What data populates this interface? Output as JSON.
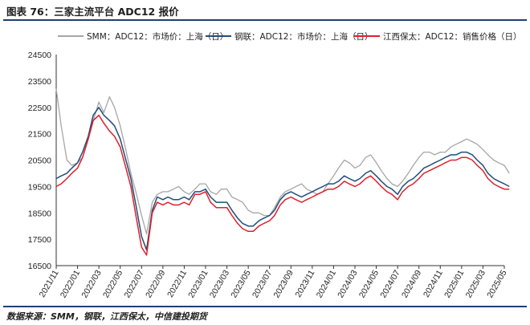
{
  "figure": {
    "title": "图表 76：三家主流平台 ADC12 报价",
    "source": "数据来源：SMM，钢联，江西保太，中信建投期货"
  },
  "colors": {
    "smm": "#a6a6a6",
    "ganglian": "#1f4e79",
    "baotai": "#e0202b",
    "rule": "#1f3f73"
  },
  "chart_data": {
    "type": "line",
    "title": "",
    "xlabel": "",
    "ylabel": "",
    "ylim": [
      16500,
      24500
    ],
    "yticks": [
      16500,
      17500,
      18500,
      19500,
      20500,
      21500,
      22500,
      23500,
      24500
    ],
    "xlim": [
      "2021-11",
      "2025-05"
    ],
    "xticks": [
      "2021/11",
      "2022/01",
      "2022/03",
      "2022/05",
      "2022/07",
      "2022/09",
      "2022/11",
      "2023/01",
      "2023/03",
      "2023/05",
      "2023/07",
      "2023/09",
      "2023/11",
      "2024/01",
      "2024/03",
      "2024/05",
      "2024/07",
      "2024/09",
      "2024/11",
      "2025/01",
      "2025/03",
      "2025/05"
    ],
    "grid": false,
    "legend_position": "top",
    "x": [
      "2021-11-01",
      "2021-11-15",
      "2021-12-01",
      "2021-12-15",
      "2022-01-01",
      "2022-01-15",
      "2022-02-01",
      "2022-02-15",
      "2022-03-01",
      "2022-03-15",
      "2022-04-01",
      "2022-04-15",
      "2022-05-01",
      "2022-05-15",
      "2022-06-01",
      "2022-06-15",
      "2022-07-01",
      "2022-07-15",
      "2022-08-01",
      "2022-08-15",
      "2022-09-01",
      "2022-09-15",
      "2022-10-01",
      "2022-10-15",
      "2022-11-01",
      "2022-11-15",
      "2022-12-01",
      "2022-12-15",
      "2023-01-01",
      "2023-01-15",
      "2023-02-01",
      "2023-02-15",
      "2023-03-01",
      "2023-03-15",
      "2023-04-01",
      "2023-04-15",
      "2023-05-01",
      "2023-05-15",
      "2023-06-01",
      "2023-06-15",
      "2023-07-01",
      "2023-07-15",
      "2023-08-01",
      "2023-08-15",
      "2023-09-01",
      "2023-09-15",
      "2023-10-01",
      "2023-10-15",
      "2023-11-01",
      "2023-11-15",
      "2023-12-01",
      "2023-12-15",
      "2024-01-01",
      "2024-01-15",
      "2024-02-01",
      "2024-02-15",
      "2024-03-01",
      "2024-03-15",
      "2024-04-01",
      "2024-04-15",
      "2024-05-01",
      "2024-05-15",
      "2024-06-01",
      "2024-06-15",
      "2024-07-01",
      "2024-07-15",
      "2024-08-01",
      "2024-08-15",
      "2024-09-01",
      "2024-09-15",
      "2024-10-01",
      "2024-10-15",
      "2024-11-01",
      "2024-11-15",
      "2024-12-01",
      "2024-12-15",
      "2025-01-01",
      "2025-01-15",
      "2025-02-01",
      "2025-02-15",
      "2025-03-01",
      "2025-03-15",
      "2025-04-01",
      "2025-04-15",
      "2025-05-01",
      "2025-05-15"
    ],
    "series": [
      {
        "name": "SMM：ADC12：市场价：上海（日）",
        "color": "#a6a6a6",
        "values": [
          23200,
          21800,
          20500,
          20300,
          20400,
          20600,
          21300,
          22000,
          22700,
          22300,
          22900,
          22500,
          21800,
          21000,
          20000,
          19300,
          18400,
          17700,
          18900,
          19200,
          19300,
          19300,
          19400,
          19500,
          19300,
          19200,
          19400,
          19600,
          19600,
          19300,
          19200,
          19400,
          19400,
          19100,
          19000,
          18900,
          18600,
          18500,
          18500,
          18400,
          18400,
          18700,
          19100,
          19300,
          19400,
          19500,
          19600,
          19400,
          19300,
          19200,
          19300,
          19600,
          19900,
          20200,
          20500,
          20400,
          20200,
          20300,
          20600,
          20700,
          20400,
          20100,
          19800,
          19600,
          19500,
          19700,
          20000,
          20300,
          20600,
          20800,
          20800,
          20700,
          20800,
          20800,
          21000,
          21100,
          21200,
          21300,
          21200,
          21100,
          20900,
          20700,
          20500,
          20400,
          20300,
          20000
        ]
      },
      {
        "name": "钢联：ADC12：市场价：上海（日）",
        "color": "#1f4e79",
        "values": [
          19800,
          19900,
          20000,
          20200,
          20400,
          20800,
          21400,
          22200,
          22500,
          22200,
          22000,
          21800,
          21300,
          20600,
          19800,
          18800,
          17600,
          17100,
          18600,
          19100,
          19000,
          19100,
          19000,
          19000,
          19100,
          19000,
          19300,
          19300,
          19400,
          19100,
          18900,
          18900,
          18900,
          18600,
          18300,
          18100,
          18000,
          18000,
          18200,
          18300,
          18400,
          18600,
          19000,
          19200,
          19300,
          19200,
          19100,
          19200,
          19300,
          19400,
          19500,
          19600,
          19600,
          19700,
          19900,
          19800,
          19700,
          19800,
          20000,
          20100,
          19900,
          19700,
          19500,
          19400,
          19200,
          19500,
          19700,
          19800,
          20000,
          20200,
          20300,
          20400,
          20500,
          20600,
          20700,
          20700,
          20800,
          20800,
          20700,
          20500,
          20300,
          20000,
          19800,
          19700,
          19600,
          19500
        ]
      },
      {
        "name": "江西保太：ADC12：销售价格（日）",
        "color": "#e0202b",
        "values": [
          19500,
          19600,
          19800,
          20000,
          20200,
          20600,
          21300,
          22000,
          22200,
          21900,
          21600,
          21400,
          21000,
          20300,
          19500,
          18400,
          17200,
          16900,
          18500,
          18900,
          18800,
          18900,
          18800,
          18800,
          18900,
          18800,
          19200,
          19200,
          19300,
          18900,
          18700,
          18700,
          18700,
          18400,
          18100,
          17900,
          17800,
          17800,
          18000,
          18100,
          18200,
          18400,
          18800,
          19000,
          19100,
          19000,
          18900,
          19000,
          19100,
          19200,
          19300,
          19400,
          19400,
          19500,
          19700,
          19600,
          19500,
          19600,
          19800,
          19900,
          19700,
          19500,
          19300,
          19200,
          19000,
          19300,
          19500,
          19600,
          19800,
          20000,
          20100,
          20200,
          20300,
          20400,
          20500,
          20500,
          20600,
          20600,
          20500,
          20300,
          20100,
          19800,
          19600,
          19500,
          19400,
          19400
        ]
      }
    ]
  }
}
